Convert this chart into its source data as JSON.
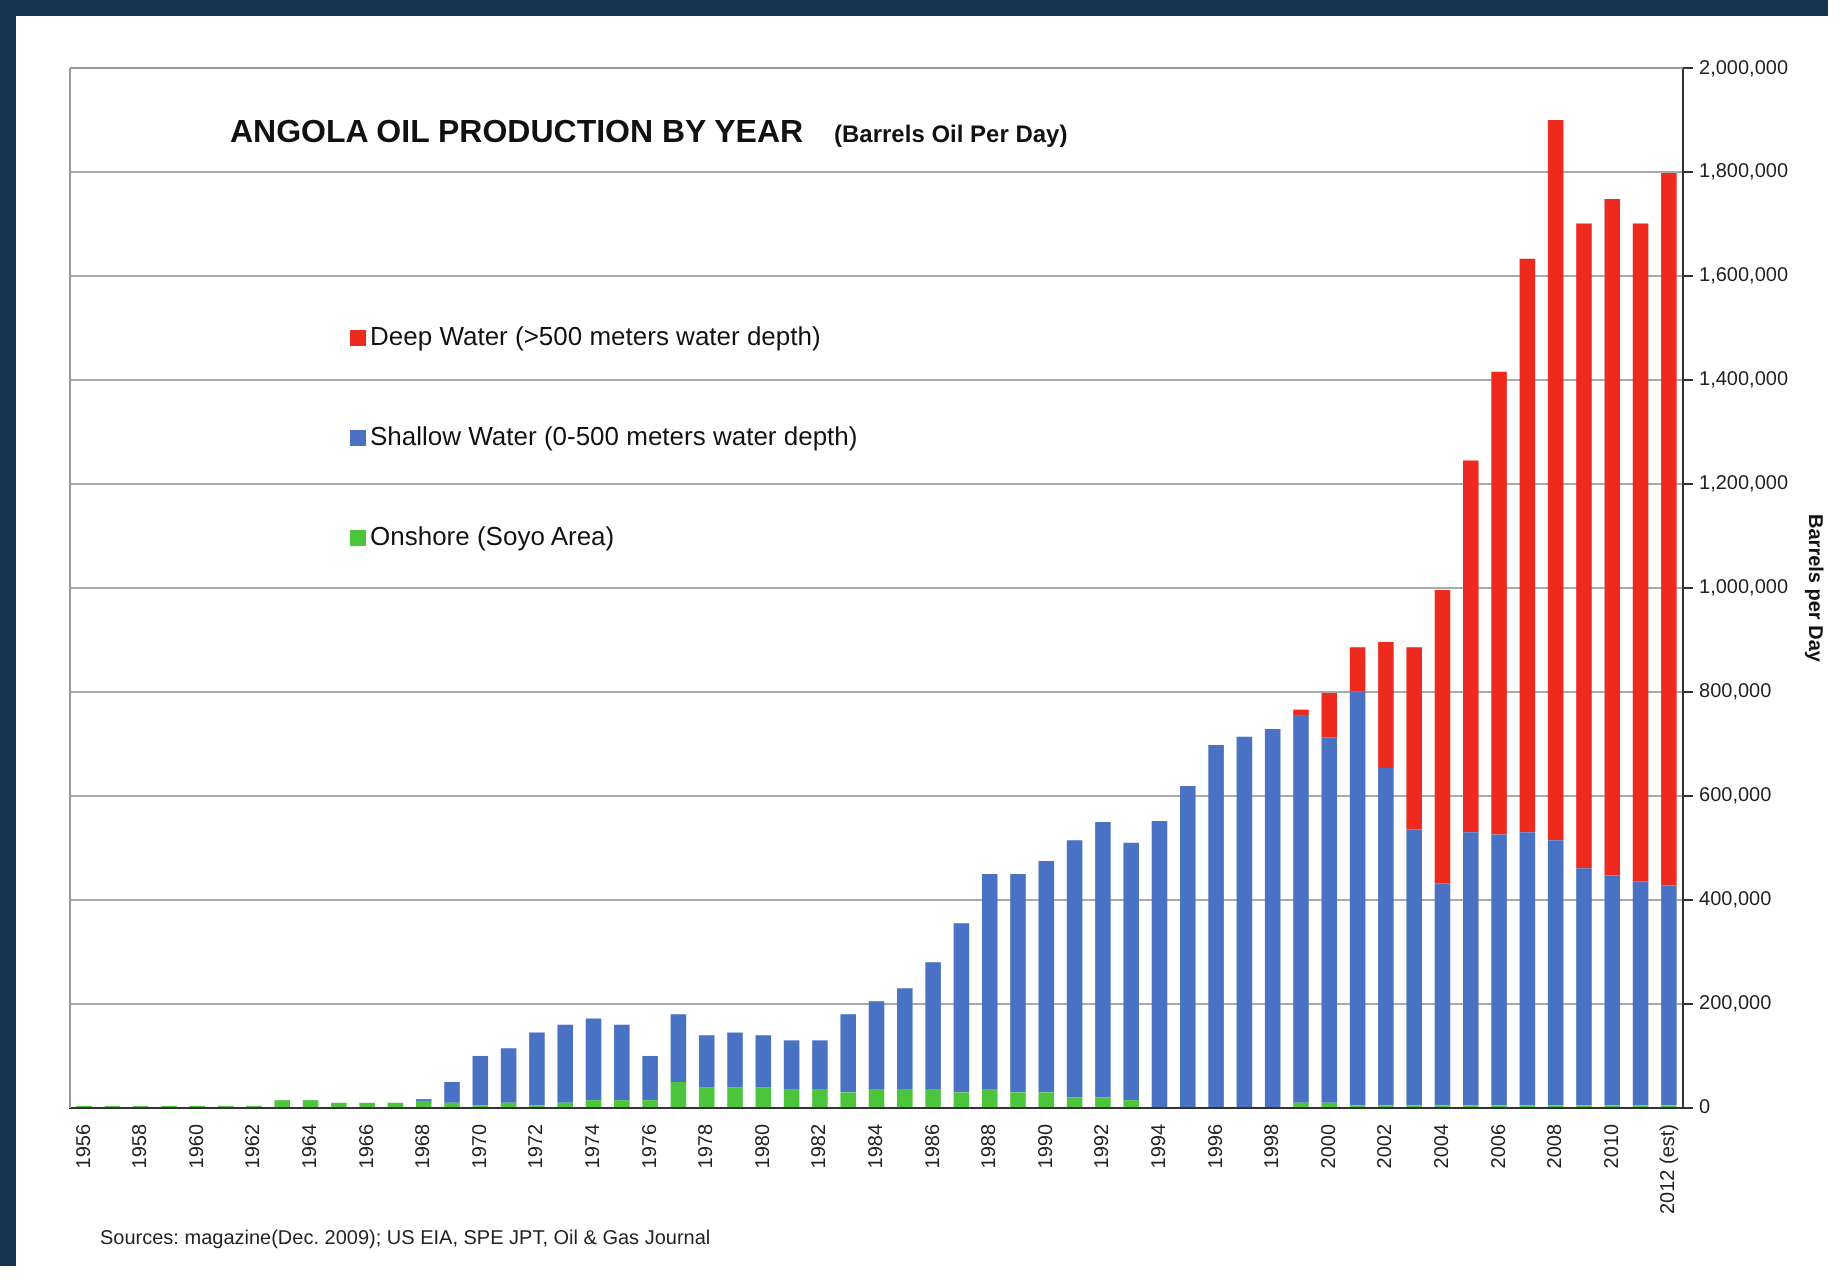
{
  "chart_data": {
    "type": "bar",
    "stacked": true,
    "title": "ANGOLA OIL PRODUCTION BY YEAR",
    "subtitle": "(Barrels Oil Per Day)",
    "ylabel": "Barrels per Day",
    "categories": [
      "1956",
      null,
      "1958",
      null,
      "1960",
      null,
      "1962",
      null,
      "1964",
      null,
      "1966",
      null,
      "1968",
      null,
      "1970",
      null,
      "1972",
      null,
      "1974",
      null,
      "1976",
      null,
      "1978",
      null,
      "1980",
      null,
      "1982",
      null,
      "1984",
      null,
      "1986",
      null,
      "1988",
      null,
      "1990",
      null,
      "1992",
      null,
      "1994",
      null,
      "1996",
      null,
      "1998",
      null,
      "2000",
      null,
      "2002",
      null,
      "2004",
      null,
      "2006",
      null,
      "2008",
      null,
      "2010",
      null,
      "2012 (est)"
    ],
    "series": [
      {
        "name": "Onshore (Soyo Area)",
        "color": "#4cc43c",
        "values": [
          4000,
          4000,
          4000,
          4000,
          4000,
          4000,
          4000,
          15000,
          15000,
          10000,
          10000,
          10000,
          12000,
          10000,
          5000,
          10000,
          5000,
          10000,
          15000,
          15000,
          15000,
          50000,
          40000,
          40000,
          40000,
          35000,
          35000,
          30000,
          35000,
          35000,
          35000,
          30000,
          35000,
          30000,
          30000,
          20000,
          20000,
          15000,
          null,
          null,
          null,
          null,
          null,
          10000,
          10000,
          5000,
          5000,
          5000,
          5000,
          5000,
          5000,
          5000,
          5000,
          5000,
          5000,
          5000,
          5000
        ]
      },
      {
        "name": "Shallow Water (0-500 meters water depth)",
        "color": "#4a72c4",
        "values": [
          null,
          null,
          null,
          null,
          null,
          null,
          null,
          null,
          null,
          null,
          null,
          null,
          5000,
          40000,
          95000,
          105000,
          140000,
          150000,
          157000,
          145000,
          85000,
          130000,
          100000,
          105000,
          100000,
          95000,
          95000,
          150000,
          170000,
          195000,
          245000,
          325000,
          415000,
          420000,
          445000,
          495000,
          530000,
          495000,
          552000,
          619000,
          698000,
          714000,
          729000,
          744000,
          703000,
          796000,
          649000,
          531000,
          427000,
          525000,
          521000,
          525000,
          510000,
          456000,
          442000,
          431000,
          423000
        ]
      },
      {
        "name": "Deep Water (>500 meters water depth)",
        "color": "#ee2a1f",
        "values": [
          null,
          null,
          null,
          null,
          null,
          null,
          null,
          null,
          null,
          null,
          null,
          null,
          null,
          null,
          null,
          null,
          null,
          null,
          null,
          null,
          null,
          null,
          null,
          null,
          null,
          null,
          null,
          null,
          null,
          null,
          null,
          null,
          null,
          null,
          null,
          null,
          null,
          null,
          null,
          null,
          null,
          null,
          null,
          12000,
          85000,
          85000,
          242000,
          350000,
          564000,
          715000,
          890000,
          1103000,
          1385000,
          1240000,
          1301000,
          1265000,
          1370000
        ]
      }
    ],
    "ylim": [
      0,
      2000000
    ],
    "yticks": [
      {
        "value": 0,
        "label": "0"
      },
      {
        "value": 200000,
        "label": "200,000"
      },
      {
        "value": 400000,
        "label": "400,000"
      },
      {
        "value": 600000,
        "label": "600,000"
      },
      {
        "value": 800000,
        "label": "800,000"
      },
      {
        "value": 1000000,
        "label": "1,000,000"
      },
      {
        "value": 1200000,
        "label": "1,200,000"
      },
      {
        "value": 1400000,
        "label": "1,400,000"
      },
      {
        "value": 1600000,
        "label": "1,600,000"
      },
      {
        "value": 1800000,
        "label": "1,800,000"
      },
      {
        "value": 2000000,
        "label": "2,000,000"
      }
    ],
    "grid": "y",
    "legend": "top left",
    "annotations": [
      "Sources: magazine(Dec. 2009); US EIA, SPE JPT, Oil & Gas Journal"
    ]
  }
}
